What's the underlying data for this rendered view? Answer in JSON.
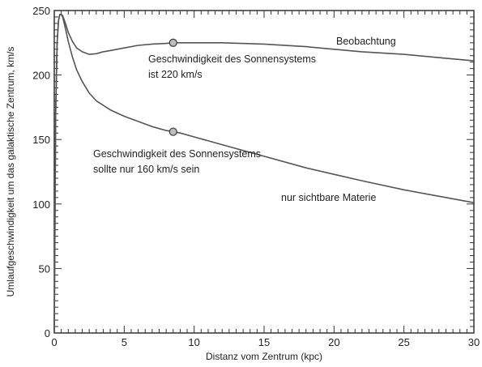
{
  "chart_data": {
    "type": "line",
    "xlabel": "Distanz vom Zentrum (kpc)",
    "ylabel": "Umlaufgeschwindigkeit um das galaktische Zentrum, km/s",
    "xlim": [
      0,
      30
    ],
    "ylim": [
      0,
      250
    ],
    "x_ticks": [
      0,
      5,
      10,
      15,
      20,
      25,
      30
    ],
    "y_ticks": [
      0,
      50,
      100,
      150,
      200,
      250
    ],
    "grid": false,
    "series": [
      {
        "name": "Beobachtung",
        "color": "#555555",
        "x": [
          0,
          0.1,
          0.2,
          0.3,
          0.4,
          0.5,
          0.6,
          0.8,
          1.0,
          1.3,
          1.6,
          2.0,
          2.5,
          3.0,
          3.5,
          4,
          5,
          6,
          7,
          8,
          8.5,
          9,
          10,
          12,
          15,
          18,
          20,
          22,
          25,
          28,
          30
        ],
        "y": [
          0,
          170,
          225,
          242,
          247,
          247,
          246,
          240,
          233,
          226,
          221,
          218,
          216,
          216.5,
          218,
          219,
          221,
          223,
          224,
          224.5,
          225,
          225,
          225,
          225,
          224,
          222,
          220,
          218,
          216,
          213,
          211
        ]
      },
      {
        "name": "nur sichtbare Materie",
        "color": "#555555",
        "x": [
          0,
          0.1,
          0.2,
          0.3,
          0.4,
          0.5,
          0.6,
          0.8,
          1.0,
          1.3,
          1.6,
          2.0,
          2.5,
          3.0,
          4,
          5,
          6,
          7,
          8,
          8.5,
          9,
          10,
          12,
          15,
          18,
          20,
          22,
          25,
          28,
          30
        ],
        "y": [
          0,
          170,
          225,
          242,
          247,
          247,
          245,
          236,
          226,
          214,
          204,
          195,
          186,
          180,
          173,
          168,
          164,
          160,
          157,
          156,
          155,
          152,
          146,
          137,
          128,
          123,
          118,
          111,
          105,
          101
        ]
      }
    ],
    "markers": [
      {
        "x": 8.5,
        "y": 225
      },
      {
        "x": 8.5,
        "y": 156
      }
    ],
    "annotations": {
      "observation": "Beobachtung",
      "sun_observed_line1": "Geschwindigkeit des Sonnensystems",
      "sun_observed_line2": "ist 220 km/s",
      "sun_expected_line1": "Geschwindigkeit des Sonnensystems",
      "sun_expected_line2": "sollte nur 160 km/s sein",
      "visible_matter": "nur sichtbare Materie"
    }
  }
}
